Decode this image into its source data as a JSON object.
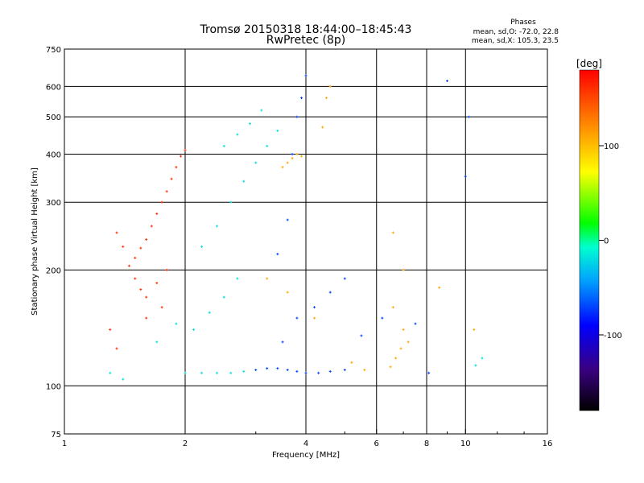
{
  "chart_data": {
    "type": "scatter",
    "title": "Tromsø 20150318 18:44:00–18:45:43",
    "subtitle": "RwPretec (8p)",
    "xlabel": "Frequency [MHz]",
    "ylabel": "Stationary phase Virtual Height [km]",
    "x_scale": "log",
    "y_scale": "log",
    "xlim": [
      1,
      16
    ],
    "ylim": [
      75,
      750
    ],
    "x_ticks": [
      1,
      2,
      4,
      6,
      8,
      10,
      16
    ],
    "x_tick_labels": [
      "1",
      "2",
      "4",
      "6",
      "8",
      "10",
      "16"
    ],
    "y_ticks": [
      75,
      100,
      200,
      300,
      400,
      500,
      600,
      750
    ],
    "y_tick_labels": [
      "75",
      "100",
      "200",
      "300",
      "400",
      "500",
      "600",
      "750"
    ],
    "grid": true,
    "phases_legend": {
      "title": "Phases",
      "line_o": "mean, sd,O: -72.0, 22.8",
      "line_x": "mean, sd,X: 105.3, 23.5"
    },
    "colorbar": {
      "label": "[deg]",
      "range": [
        -180,
        180
      ],
      "tick_values": [
        100,
        0,
        -100
      ],
      "tick_labels": [
        "100",
        "0",
        "-100"
      ]
    },
    "series": [
      {
        "phase": 160,
        "points": [
          [
            1.45,
            205
          ],
          [
            1.5,
            215
          ],
          [
            1.55,
            228
          ],
          [
            1.6,
            240
          ],
          [
            1.65,
            260
          ],
          [
            1.7,
            280
          ],
          [
            1.75,
            300
          ],
          [
            1.8,
            320
          ],
          [
            1.85,
            345
          ],
          [
            1.9,
            370
          ],
          [
            1.95,
            395
          ],
          [
            2.0,
            410
          ],
          [
            1.5,
            190
          ],
          [
            1.55,
            178
          ],
          [
            1.6,
            170
          ],
          [
            1.7,
            185
          ],
          [
            1.8,
            200
          ],
          [
            1.4,
            230
          ],
          [
            1.35,
            250
          ],
          [
            1.3,
            140
          ],
          [
            1.35,
            125
          ],
          [
            1.6,
            150
          ],
          [
            1.75,
            160
          ]
        ]
      },
      {
        "phase": 110,
        "points": [
          [
            3.5,
            370
          ],
          [
            3.6,
            380
          ],
          [
            3.7,
            390
          ],
          [
            3.8,
            400
          ],
          [
            3.9,
            395
          ],
          [
            4.5,
            560
          ],
          [
            4.6,
            600
          ],
          [
            4.4,
            470
          ],
          [
            6.5,
            112
          ],
          [
            6.7,
            118
          ],
          [
            6.9,
            125
          ],
          [
            7.2,
            130
          ],
          [
            7.0,
            140
          ],
          [
            6.6,
            160
          ],
          [
            3.2,
            190
          ],
          [
            3.6,
            175
          ],
          [
            4.2,
            150
          ],
          [
            5.2,
            115
          ],
          [
            5.6,
            110
          ],
          [
            6.6,
            250
          ],
          [
            7.0,
            200
          ],
          [
            8.6,
            180
          ],
          [
            10.5,
            140
          ]
        ]
      },
      {
        "phase": -70,
        "points": [
          [
            3.0,
            110
          ],
          [
            3.2,
            111
          ],
          [
            3.4,
            111
          ],
          [
            3.6,
            110
          ],
          [
            3.8,
            109
          ],
          [
            4.0,
            108
          ],
          [
            4.3,
            108
          ],
          [
            4.6,
            109
          ],
          [
            5.0,
            110
          ],
          [
            3.5,
            130
          ],
          [
            3.8,
            150
          ],
          [
            4.2,
            160
          ],
          [
            4.6,
            175
          ],
          [
            5.0,
            190
          ],
          [
            3.4,
            220
          ],
          [
            3.6,
            270
          ],
          [
            3.7,
            400
          ],
          [
            3.8,
            500
          ],
          [
            3.9,
            560
          ],
          [
            4.0,
            640
          ],
          [
            5.5,
            135
          ],
          [
            6.2,
            150
          ],
          [
            7.5,
            145
          ],
          [
            8.1,
            108
          ],
          [
            9.0,
            620
          ],
          [
            10.0,
            350
          ],
          [
            10.2,
            500
          ]
        ]
      },
      {
        "phase": -20,
        "points": [
          [
            2.0,
            108
          ],
          [
            2.2,
            108
          ],
          [
            2.4,
            108
          ],
          [
            2.6,
            108
          ],
          [
            2.8,
            109
          ],
          [
            2.1,
            140
          ],
          [
            2.3,
            155
          ],
          [
            2.5,
            170
          ],
          [
            2.7,
            190
          ],
          [
            2.2,
            230
          ],
          [
            2.4,
            260
          ],
          [
            2.6,
            300
          ],
          [
            2.8,
            340
          ],
          [
            3.0,
            380
          ],
          [
            3.2,
            420
          ],
          [
            3.4,
            460
          ],
          [
            2.5,
            420
          ],
          [
            2.7,
            450
          ],
          [
            2.9,
            480
          ],
          [
            3.1,
            520
          ],
          [
            1.3,
            108
          ],
          [
            1.4,
            104
          ],
          [
            1.7,
            130
          ],
          [
            1.9,
            145
          ],
          [
            10.6,
            113
          ],
          [
            11.0,
            118
          ]
        ]
      }
    ]
  }
}
